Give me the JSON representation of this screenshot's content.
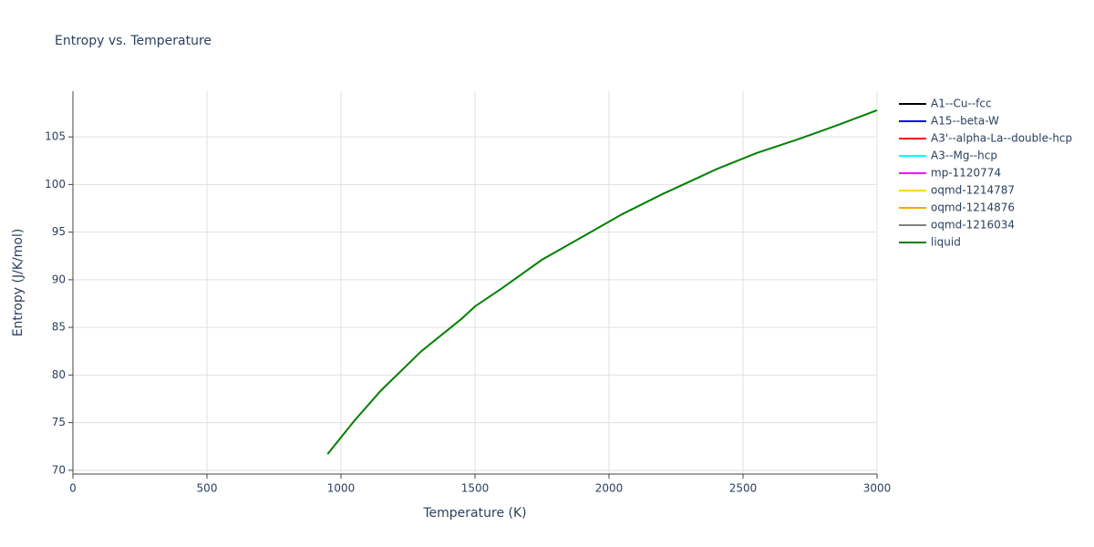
{
  "chart_data": {
    "type": "line",
    "title": "Entropy vs. Temperature",
    "x_label": "Temperature (K)",
    "y_label": "Entropy (J/K/mol)",
    "xlim": [
      0,
      3000
    ],
    "xticks": [
      0,
      500,
      1000,
      1500,
      2000,
      2500,
      3000
    ],
    "ylim": [
      69.6,
      109.8
    ],
    "yticks": [
      70,
      75,
      80,
      85,
      90,
      95,
      100,
      105
    ],
    "grid": true,
    "legend": "right",
    "series": [
      {
        "name": "A1--Cu--fcc",
        "color": "#000000",
        "x": [],
        "values": []
      },
      {
        "name": "A15--beta-W",
        "color": "#0000ff",
        "x": [],
        "values": []
      },
      {
        "name": "A3'--alpha-La--double-hcp",
        "color": "#ff0000",
        "x": [],
        "values": []
      },
      {
        "name": "A3--Mg--hcp",
        "color": "#00ffff",
        "x": [],
        "values": []
      },
      {
        "name": "mp-1120774",
        "color": "#ff00ff",
        "x": [],
        "values": []
      },
      {
        "name": "oqmd-1214787",
        "color": "#ffd700",
        "x": [],
        "values": []
      },
      {
        "name": "oqmd-1214876",
        "color": "#ffa500",
        "x": [],
        "values": []
      },
      {
        "name": "oqmd-1216034",
        "color": "#808080",
        "x": [],
        "values": []
      },
      {
        "name": "liquid",
        "color": "#008000",
        "x": [
          950,
          1050,
          1150,
          1300,
          1450,
          1500,
          1600,
          1750,
          1900,
          2050,
          2200,
          2300,
          2400,
          2550,
          2700,
          2850,
          3000
        ],
        "values": [
          71.7,
          75.2,
          78.4,
          82.5,
          85.9,
          87.2,
          89.1,
          92.1,
          94.5,
          96.9,
          99.0,
          100.3,
          101.6,
          103.3,
          104.7,
          106.2,
          107.8
        ]
      }
    ]
  }
}
